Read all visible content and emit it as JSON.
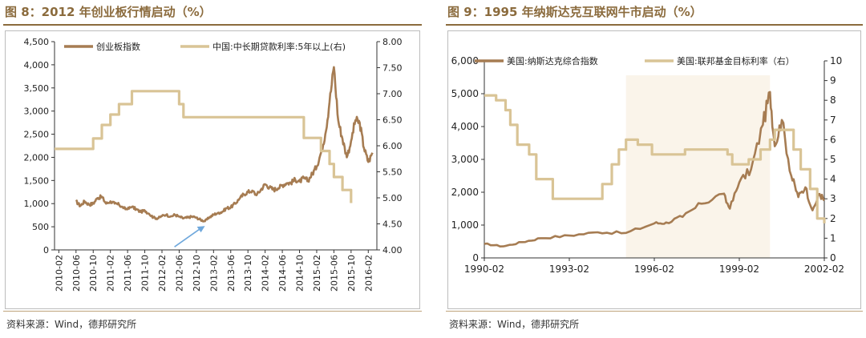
{
  "figure1": {
    "title": "图 8：2012 年创业板行情启动（%）",
    "source": "资料来源：Wind，德邦研究所",
    "legend": [
      "创业板指数",
      "中国:中长期贷款利率:5年以上(右)"
    ],
    "colors": {
      "series1": "#A67C52",
      "series2": "#D9C496",
      "arrow": "#6FA8DC"
    }
  },
  "figure2": {
    "title": "图 9：1995 年纳斯达克互联网牛市启动（%）",
    "source": "资料来源：Wind，德邦研究所",
    "legend": [
      "美国:纳斯达克综合指数",
      "美国:联邦基金目标利率（右）"
    ],
    "colors": {
      "series1": "#A67C52",
      "series2": "#D9C496",
      "shade": "#FAF4EA"
    }
  },
  "chart_data": [
    {
      "type": "line",
      "title": "",
      "left_axis": {
        "ylim": [
          0,
          4500
        ],
        "ticks": [
          "0",
          "500",
          "1,000",
          "1,500",
          "2,000",
          "2,500",
          "3,000",
          "3,500",
          "4,000",
          "4,500"
        ]
      },
      "right_axis": {
        "ylim": [
          4.0,
          8.0
        ],
        "ticks": [
          "4.00",
          "4.50",
          "5.00",
          "5.50",
          "6.00",
          "6.50",
          "7.00",
          "7.50",
          "8.00"
        ]
      },
      "x_ticks": [
        "2010-02",
        "2010-06",
        "2010-10",
        "2011-02",
        "2011-06",
        "2011-10",
        "2012-02",
        "2012-06",
        "2012-10",
        "2013-02",
        "2013-06",
        "2013-10",
        "2014-02",
        "2014-06",
        "2014-10",
        "2015-02",
        "2015-06",
        "2015-10",
        "2016-02"
      ],
      "xlim": [
        "2010-01",
        "2016-04"
      ],
      "annotation": "arrow pointing to 2012-12 low",
      "series": [
        {
          "name": "创业板指数",
          "axis": "left",
          "points": [
            [
              "2010-06",
              1050
            ],
            [
              "2010-07",
              950
            ],
            [
              "2010-08",
              1050
            ],
            [
              "2010-09",
              980
            ],
            [
              "2010-10",
              1000
            ],
            [
              "2010-11",
              1120
            ],
            [
              "2010-12",
              1150
            ],
            [
              "2011-01",
              1000
            ],
            [
              "2011-02",
              1050
            ],
            [
              "2011-03",
              1000
            ],
            [
              "2011-04",
              980
            ],
            [
              "2011-05",
              900
            ],
            [
              "2011-06",
              880
            ],
            [
              "2011-07",
              930
            ],
            [
              "2011-08",
              880
            ],
            [
              "2011-09",
              820
            ],
            [
              "2011-10",
              850
            ],
            [
              "2011-11",
              780
            ],
            [
              "2011-12",
              700
            ],
            [
              "2012-01",
              680
            ],
            [
              "2012-02",
              730
            ],
            [
              "2012-03",
              760
            ],
            [
              "2012-04",
              720
            ],
            [
              "2012-05",
              760
            ],
            [
              "2012-06",
              720
            ],
            [
              "2012-07",
              680
            ],
            [
              "2012-08",
              700
            ],
            [
              "2012-09",
              720
            ],
            [
              "2012-10",
              700
            ],
            [
              "2012-11",
              650
            ],
            [
              "2012-12",
              620
            ],
            [
              "2013-01",
              700
            ],
            [
              "2013-02",
              760
            ],
            [
              "2013-03",
              800
            ],
            [
              "2013-04",
              820
            ],
            [
              "2013-05",
              900
            ],
            [
              "2013-06",
              920
            ],
            [
              "2013-07",
              1000
            ],
            [
              "2013-08",
              1100
            ],
            [
              "2013-09",
              1200
            ],
            [
              "2013-10",
              1250
            ],
            [
              "2013-11",
              1280
            ],
            [
              "2013-12",
              1180
            ],
            [
              "2014-01",
              1300
            ],
            [
              "2014-02",
              1420
            ],
            [
              "2014-03",
              1350
            ],
            [
              "2014-04",
              1300
            ],
            [
              "2014-05",
              1330
            ],
            [
              "2014-06",
              1400
            ],
            [
              "2014-07",
              1440
            ],
            [
              "2014-08",
              1450
            ],
            [
              "2014-09",
              1520
            ],
            [
              "2014-10",
              1480
            ],
            [
              "2014-11",
              1550
            ],
            [
              "2014-12",
              1500
            ],
            [
              "2015-01",
              1650
            ],
            [
              "2015-02",
              1800
            ],
            [
              "2015-03",
              2100
            ],
            [
              "2015-04",
              2500
            ],
            [
              "2015-05",
              3200
            ],
            [
              "2015-06",
              3950
            ],
            [
              "2015-07",
              2800
            ],
            [
              "2015-08",
              2400
            ],
            [
              "2015-09",
              2000
            ],
            [
              "2015-10",
              2350
            ],
            [
              "2015-11",
              2800
            ],
            [
              "2015-12",
              2750
            ],
            [
              "2016-01",
              2200
            ],
            [
              "2016-02",
              1900
            ],
            [
              "2016-03",
              2100
            ]
          ]
        },
        {
          "name": "中国:中长期贷款利率:5年以上(右)",
          "axis": "right",
          "points": [
            [
              "2010-01",
              5.94
            ],
            [
              "2010-10",
              5.94
            ],
            [
              "2010-10",
              6.14
            ],
            [
              "2010-12",
              6.14
            ],
            [
              "2010-12",
              6.4
            ],
            [
              "2011-02",
              6.4
            ],
            [
              "2011-02",
              6.6
            ],
            [
              "2011-04",
              6.6
            ],
            [
              "2011-04",
              6.8
            ],
            [
              "2011-07",
              6.8
            ],
            [
              "2011-07",
              7.05
            ],
            [
              "2012-06",
              7.05
            ],
            [
              "2012-06",
              6.8
            ],
            [
              "2012-07",
              6.8
            ],
            [
              "2012-07",
              6.55
            ],
            [
              "2014-11",
              6.55
            ],
            [
              "2014-11",
              6.15
            ],
            [
              "2015-03",
              6.15
            ],
            [
              "2015-03",
              5.9
            ],
            [
              "2015-05",
              5.9
            ],
            [
              "2015-05",
              5.65
            ],
            [
              "2015-06",
              5.65
            ],
            [
              "2015-06",
              5.4
            ],
            [
              "2015-08",
              5.4
            ],
            [
              "2015-08",
              5.15
            ],
            [
              "2015-10",
              5.15
            ],
            [
              "2015-10",
              4.9
            ]
          ]
        }
      ]
    },
    {
      "type": "line",
      "title": "",
      "left_axis": {
        "ylim": [
          0,
          6000
        ],
        "ticks": [
          "0",
          "1,000",
          "2,000",
          "3,000",
          "4,000",
          "5,000",
          "6,000"
        ]
      },
      "right_axis": {
        "ylim": [
          0,
          10
        ],
        "ticks": [
          "0",
          "1",
          "2",
          "3",
          "4",
          "5",
          "6",
          "7",
          "8",
          "9",
          "10"
        ]
      },
      "x_ticks": [
        "1990-02",
        "1993-02",
        "1996-02",
        "1999-02",
        "2002-02"
      ],
      "xlim": [
        "1990-02",
        "2002-02"
      ],
      "shaded_range": [
        "1995-02",
        "2000-03"
      ],
      "series": [
        {
          "name": "美国:纳斯达克综合指数",
          "axis": "left",
          "points": [
            [
              "1990-02",
              430
            ],
            [
              "1990-10",
              350
            ],
            [
              "1991-06",
              480
            ],
            [
              "1992-02",
              600
            ],
            [
              "1993-02",
              680
            ],
            [
              "1994-02",
              780
            ],
            [
              "1995-02",
              760
            ],
            [
              "1996-02",
              1050
            ],
            [
              "1996-07",
              1080
            ],
            [
              "1997-02",
              1250
            ],
            [
              "1997-10",
              1650
            ],
            [
              "1998-07",
              1950
            ],
            [
              "1998-10",
              1500
            ],
            [
              "1999-02",
              2300
            ],
            [
              "1999-07",
              2700
            ],
            [
              "1999-12",
              4050
            ],
            [
              "2000-03",
              5050
            ],
            [
              "2000-05",
              3400
            ],
            [
              "2000-08",
              4200
            ],
            [
              "2000-12",
              2500
            ],
            [
              "2001-03",
              1850
            ],
            [
              "2001-06",
              2150
            ],
            [
              "2001-09",
              1450
            ],
            [
              "2001-12",
              1950
            ],
            [
              "2002-02",
              1750
            ]
          ]
        },
        {
          "name": "美国:联邦基金目标利率（右）",
          "axis": "right",
          "points": [
            [
              "1990-02",
              8.25
            ],
            [
              "1990-07",
              8.0
            ],
            [
              "1990-11",
              7.5
            ],
            [
              "1991-01",
              6.75
            ],
            [
              "1991-04",
              5.75
            ],
            [
              "1991-09",
              5.25
            ],
            [
              "1991-12",
              4.0
            ],
            [
              "1992-07",
              3.0
            ],
            [
              "1994-02",
              3.0
            ],
            [
              "1994-04",
              3.75
            ],
            [
              "1994-08",
              4.75
            ],
            [
              "1994-11",
              5.5
            ],
            [
              "1995-02",
              6.0
            ],
            [
              "1995-07",
              5.75
            ],
            [
              "1996-01",
              5.25
            ],
            [
              "1997-03",
              5.5
            ],
            [
              "1998-09",
              5.25
            ],
            [
              "1998-11",
              4.75
            ],
            [
              "1999-06",
              5.0
            ],
            [
              "1999-11",
              5.5
            ],
            [
              "2000-03",
              6.0
            ],
            [
              "2000-05",
              6.5
            ],
            [
              "2001-01",
              5.5
            ],
            [
              "2001-04",
              4.5
            ],
            [
              "2001-08",
              3.5
            ],
            [
              "2001-11",
              2.0
            ],
            [
              "2002-02",
              1.75
            ]
          ]
        }
      ]
    }
  ]
}
